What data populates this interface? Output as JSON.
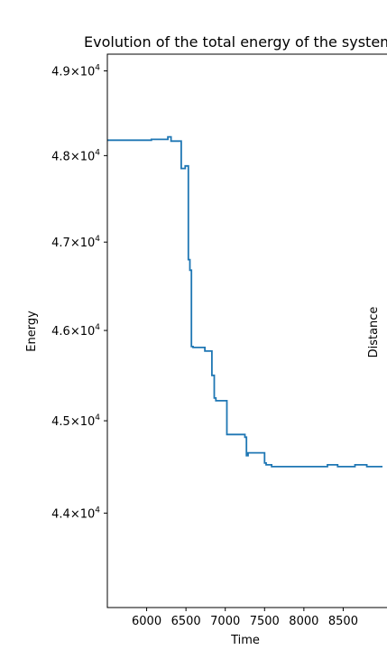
{
  "chart_data": {
    "type": "line",
    "title": "Evolution of the total energy of the system",
    "xlabel": "Time",
    "ylabel": "Energy",
    "right_label": "Distance",
    "xlim": [
      5500,
      9000
    ],
    "ylim": [
      43000,
      49200
    ],
    "yscale": "log",
    "grid": false,
    "x_ticks": [
      6000,
      6500,
      7000,
      7500,
      8000,
      8500
    ],
    "x_tick_labels": [
      "6000",
      "6500",
      "7000",
      "7500",
      "8000",
      "8500"
    ],
    "y_ticks": [
      {
        "value": 44000,
        "mantissa": "4.4"
      },
      {
        "value": 45000,
        "mantissa": "4.5"
      },
      {
        "value": 46000,
        "mantissa": "4.6"
      },
      {
        "value": 47000,
        "mantissa": "4.7"
      },
      {
        "value": 48000,
        "mantissa": "4.8"
      },
      {
        "value": 49000,
        "mantissa": "4.9"
      }
    ],
    "y_tick_base": "10",
    "y_tick_exponent": "4",
    "series": [
      {
        "color": "#1f77b4",
        "x": [
          5500,
          6060,
          6060,
          6270,
          6270,
          6310,
          6310,
          6440,
          6440,
          6490,
          6490,
          6530,
          6530,
          6550,
          6550,
          6570,
          6570,
          6590,
          6590,
          6740,
          6740,
          6830,
          6830,
          6860,
          6860,
          6880,
          6880,
          7020,
          7020,
          7250,
          7250,
          7270,
          7270,
          7290,
          7290,
          7500,
          7500,
          7520,
          7520,
          7590,
          7590,
          7640,
          7640,
          8300,
          8300,
          8430,
          8430,
          8650,
          8650,
          8800,
          8800,
          9000
        ],
        "y": [
          48180,
          48180,
          48190,
          48190,
          48220,
          48220,
          48170,
          48170,
          47850,
          47850,
          47880,
          47880,
          46800,
          46800,
          46680,
          46680,
          45820,
          45820,
          45810,
          45810,
          45770,
          45770,
          45500,
          45500,
          45250,
          45250,
          45220,
          45220,
          44850,
          44850,
          44820,
          44820,
          44620,
          44620,
          44650,
          44650,
          44540,
          44540,
          44520,
          44520,
          44500,
          44500,
          44500,
          44500,
          44520,
          44520,
          44500,
          44500,
          44520,
          44520,
          44500,
          44500
        ]
      }
    ]
  }
}
